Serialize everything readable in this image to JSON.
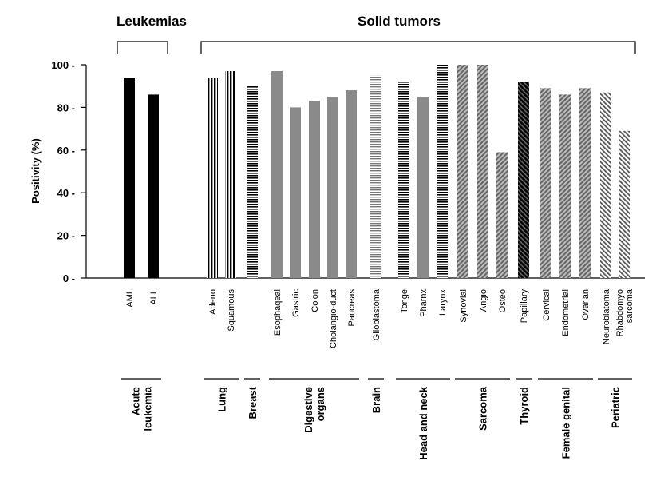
{
  "chart_data": {
    "type": "bar",
    "ylabel": "Positivity (%)",
    "ylim": [
      0,
      100
    ],
    "yticks": [
      0,
      20,
      40,
      60,
      80,
      100
    ],
    "sections": [
      {
        "label": "Leukemias"
      },
      {
        "label": "Solid tumors"
      }
    ],
    "bars": [
      {
        "category": "AML",
        "value": 94,
        "pattern": "solid"
      },
      {
        "category": "ALL",
        "value": 86,
        "pattern": "solid"
      },
      {
        "category": "Adeno",
        "value": 94,
        "pattern": "vlines"
      },
      {
        "category": "Squamous",
        "value": 97,
        "pattern": "vlines"
      },
      {
        "category": "",
        "value": 90,
        "pattern": "hlines"
      },
      {
        "category": "Esophaqeal",
        "value": 97,
        "pattern": "gray"
      },
      {
        "category": "Gastric",
        "value": 80,
        "pattern": "gray"
      },
      {
        "category": "Colon",
        "value": 83,
        "pattern": "gray"
      },
      {
        "category": "Cholangio-duct",
        "value": 85,
        "pattern": "gray"
      },
      {
        "category": "Pancreas",
        "value": 88,
        "pattern": "gray"
      },
      {
        "category": "Glioblastoma",
        "value": 95,
        "pattern": "hlines-light"
      },
      {
        "category": "Tonge",
        "value": 92,
        "pattern": "hlines"
      },
      {
        "category": "Pharnx",
        "value": 85,
        "pattern": "gray"
      },
      {
        "category": "Larynx",
        "value": 100,
        "pattern": "hlines"
      },
      {
        "category": "Synovial",
        "value": 100,
        "pattern": "diag-gray"
      },
      {
        "category": "Angio",
        "value": 100,
        "pattern": "diag-gray"
      },
      {
        "category": "Osteo",
        "value": 59,
        "pattern": "diag-gray"
      },
      {
        "category": "Papillary",
        "value": 92,
        "pattern": "diag-dark"
      },
      {
        "category": "Cervical",
        "value": 89,
        "pattern": "diag-gray"
      },
      {
        "category": "Endometrial",
        "value": 86,
        "pattern": "diag-gray"
      },
      {
        "category": "Ovarian",
        "value": 89,
        "pattern": "diag-gray"
      },
      {
        "category": "Neuroblatoma",
        "value": 87,
        "pattern": "diag-light"
      },
      {
        "category": "Rhabdomyo\nsarcoma",
        "value": 69,
        "pattern": "diag-light"
      }
    ],
    "groups": [
      {
        "label": "Acute\nleukemia",
        "first": 0,
        "last": 1
      },
      {
        "label": "Lung",
        "first": 2,
        "last": 3
      },
      {
        "label": "Breast",
        "first": 4,
        "last": 4
      },
      {
        "label": "Digestive\norgans",
        "first": 5,
        "last": 9
      },
      {
        "label": "Brain",
        "first": 10,
        "last": 10
      },
      {
        "label": "Head and neck",
        "first": 11,
        "last": 13
      },
      {
        "label": "Sarcoma",
        "first": 14,
        "last": 16
      },
      {
        "label": "Thyroid",
        "first": 17,
        "last": 17
      },
      {
        "label": "Female genital",
        "first": 18,
        "last": 20
      },
      {
        "label": "Periatric",
        "first": 21,
        "last": 22
      }
    ]
  }
}
